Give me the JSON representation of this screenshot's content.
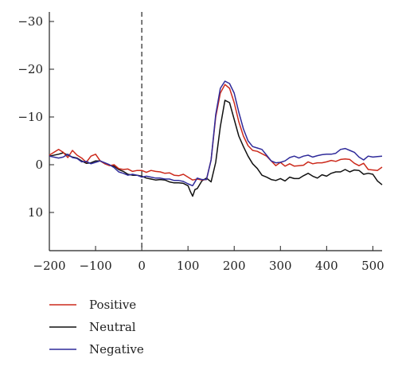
{
  "chart_data": {
    "type": "line",
    "title": "",
    "xlabel": "",
    "ylabel": "",
    "xlim": [
      -200,
      520
    ],
    "ylim": [
      -32,
      18
    ],
    "y_inverted": true,
    "grid": false,
    "x_ticks": [
      -200,
      -100,
      0,
      100,
      200,
      300,
      400,
      500
    ],
    "x_tick_labels": [
      "−200",
      "−100",
      "0",
      "100",
      "200",
      "300",
      "400",
      "500"
    ],
    "y_ticks": [
      -30,
      -20,
      -10,
      0,
      10
    ],
    "y_tick_labels": [
      "−30",
      "−20",
      "−10",
      "0",
      "10"
    ],
    "reference_line": {
      "x": 0,
      "style": "dashed"
    },
    "legend_position": "bottom-left",
    "series": [
      {
        "name": "Positive",
        "color": "#cc2a1c",
        "x": [
          -200,
          -180,
          -170,
          -160,
          -150,
          -140,
          -130,
          -120,
          -110,
          -100,
          -90,
          -80,
          -70,
          -60,
          -50,
          -40,
          -30,
          -20,
          -10,
          0,
          10,
          20,
          30,
          40,
          50,
          60,
          70,
          80,
          90,
          100,
          110,
          120,
          130,
          140,
          150,
          160,
          170,
          180,
          190,
          200,
          210,
          220,
          230,
          240,
          250,
          260,
          270,
          280,
          290,
          300,
          310,
          320,
          330,
          340,
          350,
          360,
          370,
          380,
          390,
          400,
          410,
          420,
          430,
          440,
          450,
          460,
          470,
          480,
          490,
          500,
          510,
          520
        ],
        "y": [
          -2.0,
          -3.2,
          -2.6,
          -1.5,
          -3.0,
          -2.0,
          -1.4,
          -0.5,
          -1.8,
          -2.2,
          -0.8,
          -0.2,
          0.2,
          0.0,
          0.8,
          1.0,
          0.9,
          1.4,
          1.2,
          1.2,
          1.6,
          1.2,
          1.4,
          1.5,
          1.8,
          1.7,
          2.2,
          2.3,
          2.0,
          2.6,
          3.2,
          3.0,
          3.2,
          3.1,
          -1.0,
          -10.0,
          -15.0,
          -16.8,
          -16.0,
          -13.0,
          -9.0,
          -6.0,
          -4.0,
          -3.0,
          -2.8,
          -2.3,
          -1.8,
          -0.8,
          0.2,
          -0.5,
          0.3,
          -0.2,
          0.3,
          0.2,
          0.1,
          -0.6,
          -0.2,
          -0.4,
          -0.4,
          -0.6,
          -0.9,
          -0.7,
          -1.1,
          -1.2,
          -1.1,
          -0.3,
          0.2,
          -0.3,
          1.0,
          1.1,
          1.2,
          0.5
        ]
      },
      {
        "name": "Neutral",
        "color": "#111111",
        "x": [
          -200,
          -180,
          -170,
          -160,
          -150,
          -140,
          -130,
          -120,
          -110,
          -100,
          -90,
          -80,
          -70,
          -60,
          -50,
          -40,
          -30,
          -20,
          -10,
          0,
          10,
          20,
          30,
          40,
          50,
          60,
          70,
          80,
          90,
          100,
          105,
          110,
          115,
          120,
          130,
          140,
          150,
          160,
          170,
          180,
          190,
          200,
          210,
          220,
          230,
          240,
          250,
          260,
          270,
          280,
          290,
          300,
          310,
          320,
          330,
          340,
          350,
          360,
          370,
          380,
          390,
          400,
          410,
          420,
          430,
          440,
          450,
          460,
          470,
          480,
          490,
          500,
          510,
          520
        ],
        "y": [
          -1.8,
          -2.2,
          -2.5,
          -2.0,
          -1.6,
          -1.4,
          -0.8,
          -0.3,
          -0.4,
          -0.8,
          -0.8,
          -0.2,
          0.1,
          0.3,
          1.0,
          1.4,
          2.0,
          2.2,
          2.2,
          2.4,
          2.8,
          3.0,
          3.2,
          3.1,
          3.2,
          3.6,
          3.8,
          3.8,
          3.9,
          4.4,
          5.6,
          6.6,
          5.2,
          5.0,
          3.4,
          2.8,
          3.6,
          -0.5,
          -8.0,
          -13.5,
          -13.0,
          -9.5,
          -6.0,
          -3.8,
          -1.8,
          -0.2,
          0.8,
          2.2,
          2.6,
          3.1,
          3.3,
          2.9,
          3.4,
          2.6,
          2.9,
          2.9,
          2.3,
          1.8,
          2.4,
          2.8,
          2.1,
          2.4,
          1.8,
          1.5,
          1.5,
          1.0,
          1.5,
          1.1,
          1.2,
          2.0,
          1.8,
          2.0,
          3.4,
          4.2
        ]
      },
      {
        "name": "Negative",
        "color": "#2f2b9a",
        "x": [
          -200,
          -180,
          -170,
          -160,
          -150,
          -140,
          -130,
          -120,
          -110,
          -100,
          -90,
          -80,
          -70,
          -60,
          -50,
          -40,
          -30,
          -20,
          -10,
          0,
          10,
          20,
          30,
          40,
          50,
          60,
          70,
          80,
          90,
          100,
          110,
          120,
          130,
          140,
          150,
          160,
          170,
          180,
          190,
          200,
          210,
          220,
          230,
          240,
          250,
          260,
          270,
          280,
          290,
          300,
          310,
          320,
          330,
          340,
          350,
          360,
          370,
          380,
          390,
          400,
          410,
          420,
          430,
          440,
          450,
          460,
          470,
          480,
          490,
          500,
          510,
          520
        ],
        "y": [
          -1.8,
          -1.4,
          -1.6,
          -2.2,
          -1.5,
          -1.3,
          -0.6,
          -0.7,
          -0.2,
          -0.5,
          -0.8,
          -0.4,
          0.0,
          0.6,
          1.5,
          1.8,
          2.2,
          2.0,
          2.2,
          2.6,
          2.4,
          2.6,
          2.8,
          2.8,
          3.0,
          3.0,
          3.3,
          3.3,
          3.5,
          4.0,
          4.4,
          2.8,
          3.1,
          3.1,
          -1.0,
          -10.5,
          -16.0,
          -17.5,
          -17.0,
          -15.0,
          -11.0,
          -7.5,
          -5.0,
          -3.8,
          -3.5,
          -3.2,
          -2.0,
          -0.8,
          -0.4,
          -0.5,
          -0.8,
          -1.5,
          -1.8,
          -1.4,
          -1.8,
          -2.0,
          -1.6,
          -1.9,
          -2.1,
          -2.2,
          -2.2,
          -2.4,
          -3.2,
          -3.4,
          -3.0,
          -2.6,
          -1.6,
          -1.0,
          -1.8,
          -1.6,
          -1.7,
          -1.8
        ]
      }
    ]
  }
}
